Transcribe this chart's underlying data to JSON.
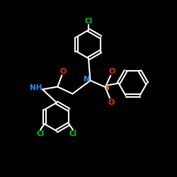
{
  "bg_color": "#000000",
  "bond_color": "#ffffff",
  "bond_width": 1.5,
  "N_color": "#1E90FF",
  "O_color": "#FF2200",
  "S_color": "#DAA520",
  "Cl_color": "#00CC00",
  "NH_color": "#1E90FF",
  "figsize": [
    2.5,
    2.5
  ],
  "dpi": 100,
  "xlim": [
    0,
    10
  ],
  "ylim": [
    0,
    10
  ]
}
